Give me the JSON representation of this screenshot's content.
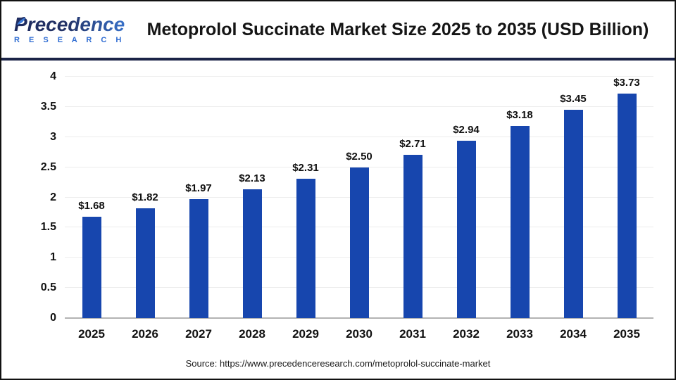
{
  "header": {
    "logo_name": "Precedence",
    "logo_sub": "R E S E A R C H",
    "title": "Metoprolol Succinate Market Size 2025 to 2035 (USD Billion)"
  },
  "chart_data": {
    "type": "bar",
    "title": "Metoprolol Succinate Market Size 2025 to 2035 (USD Billion)",
    "categories": [
      "2025",
      "2026",
      "2027",
      "2028",
      "2029",
      "2030",
      "2031",
      "2032",
      "2033",
      "2034",
      "2035"
    ],
    "values": [
      1.68,
      1.82,
      1.97,
      2.13,
      2.31,
      2.5,
      2.71,
      2.94,
      3.18,
      3.45,
      3.73
    ],
    "value_labels": [
      "$1.68",
      "$1.82",
      "$1.97",
      "$2.13",
      "$2.31",
      "$2.50",
      "$2.71",
      "$2.94",
      "$3.18",
      "$3.45",
      "$3.73"
    ],
    "xlabel": "",
    "ylabel": "",
    "ylim": [
      0,
      4
    ],
    "yticks": [
      0,
      0.5,
      1,
      1.5,
      2,
      2.5,
      3,
      3.5,
      4
    ],
    "ytick_labels": [
      "0",
      "0.5",
      "1",
      "1.5",
      "2",
      "2.5",
      "3",
      "3.5",
      "4"
    ],
    "grid": true,
    "legend": "none",
    "bar_color": "#1746ae"
  },
  "footer": {
    "source": "Source: https://www.precedenceresearch.com/metoprolol-succinate-market"
  },
  "colors": {
    "bar": "#1746ae",
    "divider": "#1b2347",
    "gridline": "#ededed",
    "baseline": "#b3b3b3",
    "logo_navy": "#1d2a5e",
    "logo_blue": "#2d6bd2",
    "title_text": "#151515"
  }
}
